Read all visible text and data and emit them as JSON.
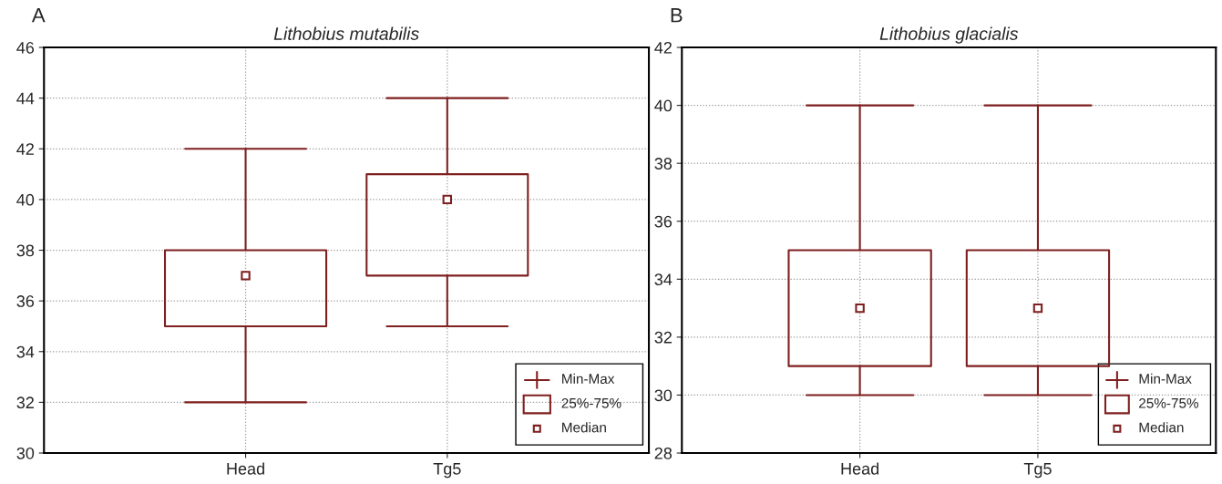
{
  "chart_data": [
    {
      "type": "box",
      "title": "Lithobius mutabilis",
      "categories": [
        "Head",
        "Tg5"
      ],
      "color": "#7f1f1f",
      "boxes": [
        {
          "low": 32,
          "q1": 35,
          "median": 37,
          "q3": 38,
          "high": 42
        },
        {
          "low": 35,
          "q1": 37,
          "median": 40,
          "q3": 41,
          "high": 44
        }
      ],
      "ylim": [
        30,
        46
      ],
      "yticks": [
        30,
        32,
        34,
        36,
        38,
        40,
        42,
        44,
        46
      ],
      "grid": true,
      "annotations": [
        "A",
        "Min-Max",
        "25%-75%",
        "Median"
      ]
    },
    {
      "type": "box",
      "title": "Lithobius glacialis",
      "categories": [
        "Head",
        "Tg5"
      ],
      "color": "#7f1f1f",
      "boxes": [
        {
          "low": 30,
          "q1": 31,
          "median": 33,
          "q3": 35,
          "high": 40
        },
        {
          "low": 30,
          "q1": 31,
          "median": 33,
          "q3": 35,
          "high": 40
        }
      ],
      "ylim": [
        28,
        42
      ],
      "yticks": [
        28,
        30,
        32,
        34,
        36,
        38,
        40,
        42
      ],
      "grid": true,
      "annotations": [
        "B",
        "Min-Max",
        "25%-75%",
        "Median"
      ]
    }
  ]
}
